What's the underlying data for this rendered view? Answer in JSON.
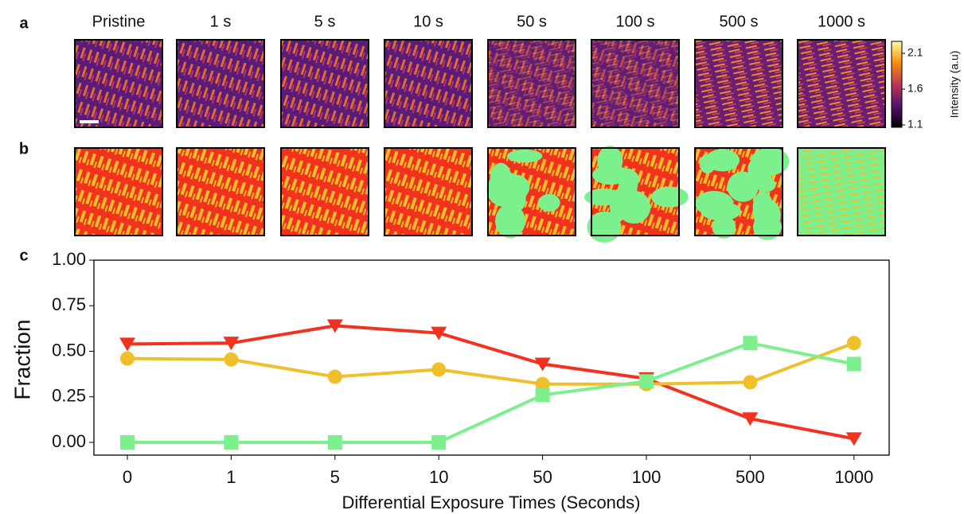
{
  "panel_labels": [
    "a",
    "b",
    "c"
  ],
  "image_titles": [
    "Pristine",
    "1 s",
    "5 s",
    "10 s",
    "50 s",
    "100 s",
    "500 s",
    "1000 s"
  ],
  "colorbar": {
    "label": "Intensity (a.u)",
    "lim": [
      1.067,
      2.267
    ],
    "ticks": [
      1.1,
      1.6,
      2.1
    ]
  },
  "chart_data": {
    "type": "line",
    "categories": [
      "0",
      "1",
      "5",
      "10",
      "50",
      "100",
      "500",
      "1000"
    ],
    "xlabel": "Differential Exposure Times (Seconds)",
    "ylabel": "Fraction",
    "ylim": [
      -0.07,
      1.0
    ],
    "yticks": [
      {
        "value": 0,
        "label": "0.00"
      },
      {
        "value": 0.25,
        "label": "0.25"
      },
      {
        "value": 0.5,
        "label": "0.50"
      },
      {
        "value": 0.75,
        "label": "0.75"
      },
      {
        "value": 1,
        "label": "1.00"
      }
    ],
    "grid": false,
    "series": [
      {
        "color": "#f2321e",
        "marker": "triangle-down",
        "values": [
          0.54,
          0.545,
          0.64,
          0.6,
          0.43,
          0.35,
          0.13,
          0.02
        ]
      },
      {
        "color": "#f0c02a",
        "marker": "circle",
        "values": [
          0.46,
          0.455,
          0.36,
          0.4,
          0.32,
          0.32,
          0.33,
          0.545
        ]
      },
      {
        "color": "#7cf08c",
        "marker": "square",
        "values": [
          0,
          0,
          0,
          0,
          0.26,
          0.335,
          0.545,
          0.43
        ]
      }
    ]
  }
}
